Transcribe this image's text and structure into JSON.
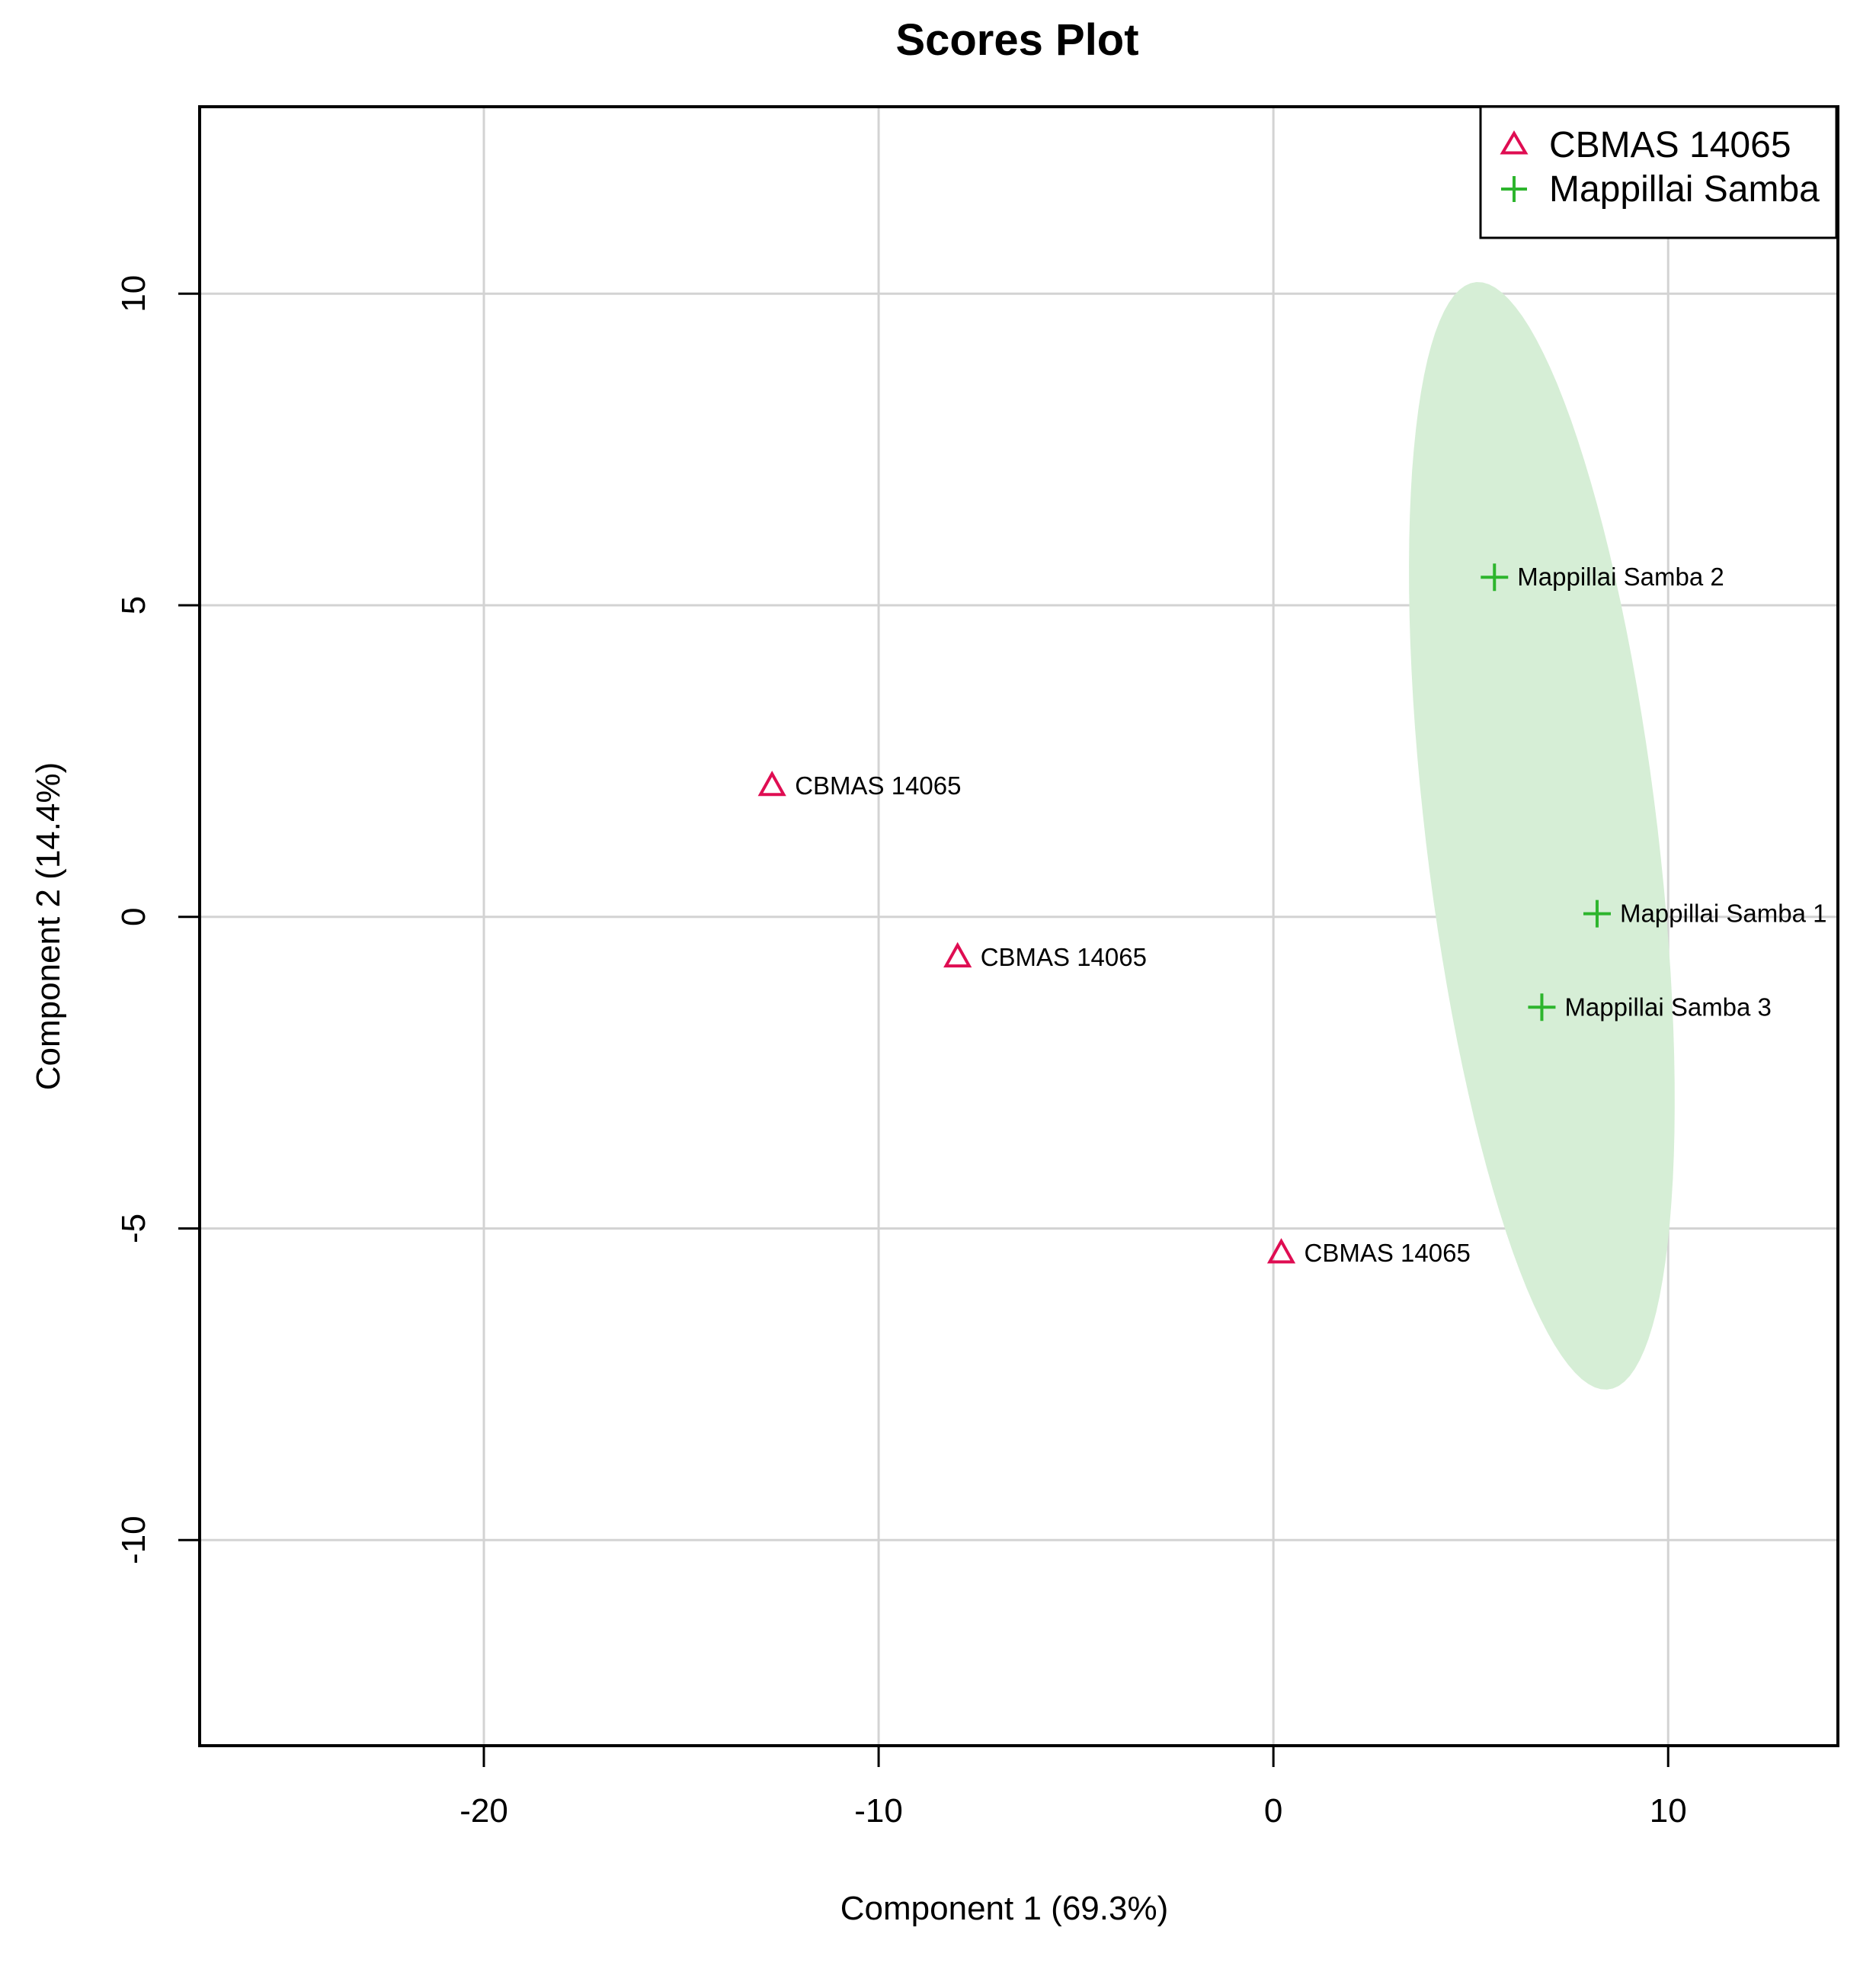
{
  "chart_data": {
    "type": "scatter",
    "title": "Scores Plot",
    "xlabel": "Component 1 (69.3%)",
    "ylabel": "Component 2 (14.4%)",
    "xlim": [
      -27.2,
      14.3
    ],
    "ylim": [
      -13.3,
      13.0
    ],
    "xticks": [
      -20,
      -10,
      0,
      10
    ],
    "yticks": [
      -10,
      -5,
      0,
      5,
      10
    ],
    "grid": true,
    "legend_position": "top-right",
    "series": [
      {
        "name": "CBMAS 14065",
        "marker": "triangle",
        "color": "#DF0D52",
        "points": [
          {
            "x": -12.7,
            "y": 2.1,
            "label": "CBMAS 14065"
          },
          {
            "x": -8.0,
            "y": -0.65,
            "label": "CBMAS 14065"
          },
          {
            "x": 0.2,
            "y": -5.4,
            "label": "CBMAS 14065"
          }
        ]
      },
      {
        "name": "Mappillai Samba",
        "marker": "plus",
        "color": "#2DB52D",
        "ellipse_fill": "#D6EED6",
        "ellipse": {
          "cx": 6.8,
          "cy": 1.3,
          "semi_major": 9.05,
          "semi_minor": 2.9,
          "rotation_deg": -78.5
        },
        "points": [
          {
            "x": 5.6,
            "y": 5.45,
            "label": "Mappillai Samba 2"
          },
          {
            "x": 8.2,
            "y": 0.05,
            "label": "Mappillai Samba 1"
          },
          {
            "x": 6.8,
            "y": -1.45,
            "label": "Mappillai Samba 3"
          }
        ]
      }
    ]
  }
}
